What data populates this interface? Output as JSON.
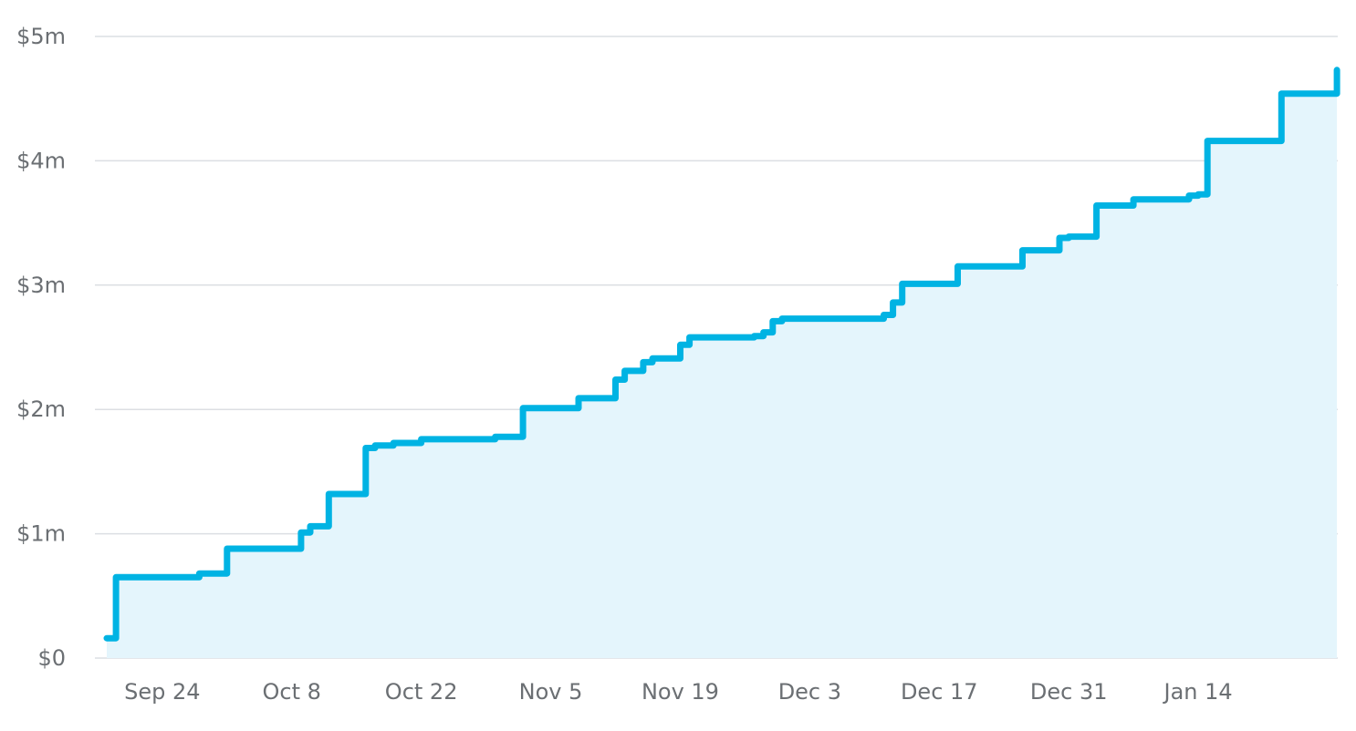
{
  "chart_data": {
    "type": "line",
    "step": true,
    "fill_under": true,
    "title": "",
    "xlabel": "",
    "ylabel": "",
    "x_tick_labels": [
      "Sep 24",
      "Oct 8",
      "Oct 22",
      "Nov 5",
      "Nov 19",
      "Dec 3",
      "Dec 17",
      "Dec 31",
      "Jan 14"
    ],
    "y_tick_labels": [
      "$0",
      "$1m",
      "$2m",
      "$3m",
      "$4m",
      "$5m"
    ],
    "y_tick_values": [
      0,
      1000000,
      2000000,
      3000000,
      4000000,
      5000000
    ],
    "ylim": [
      0,
      5000000
    ],
    "x_range": [
      "2023-09-18",
      "2024-01-28"
    ],
    "grid": true,
    "colors": {
      "line": "#00b3e3",
      "area": "#e4f5fc",
      "grid": "#dcdfe3",
      "label": "#6b6f73"
    },
    "series": [
      {
        "points": [
          [
            "2023-09-18",
            160000
          ],
          [
            "2023-09-19",
            650000
          ],
          [
            "2023-09-28",
            680000
          ],
          [
            "2023-10-01",
            880000
          ],
          [
            "2023-10-09",
            1010000
          ],
          [
            "2023-10-10",
            1060000
          ],
          [
            "2023-10-12",
            1320000
          ],
          [
            "2023-10-16",
            1690000
          ],
          [
            "2023-10-17",
            1710000
          ],
          [
            "2023-10-19",
            1730000
          ],
          [
            "2023-10-22",
            1760000
          ],
          [
            "2023-10-30",
            1780000
          ],
          [
            "2023-11-02",
            2010000
          ],
          [
            "2023-11-08",
            2090000
          ],
          [
            "2023-11-12",
            2240000
          ],
          [
            "2023-11-13",
            2310000
          ],
          [
            "2023-11-15",
            2380000
          ],
          [
            "2023-11-16",
            2410000
          ],
          [
            "2023-11-19",
            2520000
          ],
          [
            "2023-11-20",
            2580000
          ],
          [
            "2023-11-27",
            2590000
          ],
          [
            "2023-11-28",
            2620000
          ],
          [
            "2023-11-29",
            2710000
          ],
          [
            "2023-11-30",
            2730000
          ],
          [
            "2023-12-11",
            2760000
          ],
          [
            "2023-12-12",
            2860000
          ],
          [
            "2023-12-13",
            3010000
          ],
          [
            "2023-12-19",
            3150000
          ],
          [
            "2023-12-26",
            3280000
          ],
          [
            "2023-12-30",
            3380000
          ],
          [
            "2023-12-31",
            3390000
          ],
          [
            "2024-01-03",
            3640000
          ],
          [
            "2024-01-07",
            3690000
          ],
          [
            "2024-01-13",
            3720000
          ],
          [
            "2024-01-14",
            3730000
          ],
          [
            "2024-01-15",
            4160000
          ],
          [
            "2024-01-22",
            4160000
          ],
          [
            "2024-01-23",
            4540000
          ],
          [
            "2024-01-29",
            4550000
          ],
          [
            "2024-01-29",
            4730000
          ]
        ]
      }
    ]
  }
}
